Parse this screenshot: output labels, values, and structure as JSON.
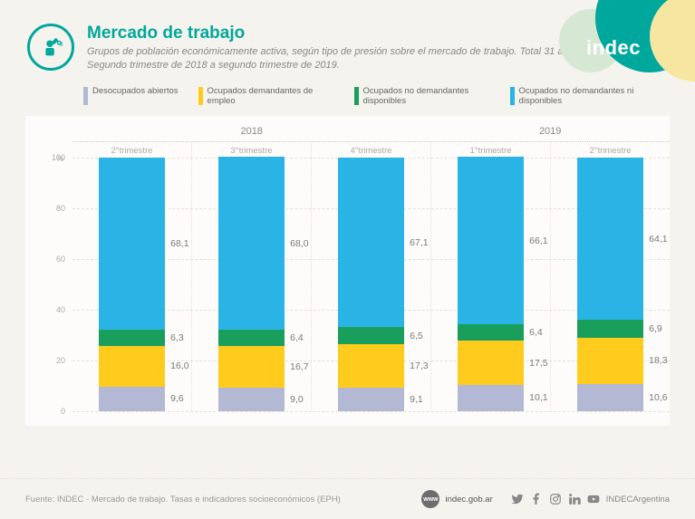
{
  "brand": "indec",
  "title": "Mercado de trabajo",
  "subtitle": "Grupos de población económicamente activa, según tipo de presión sobre el mercado de trabajo. Total 31 aglomerados urbanos. Segundo trimestre de 2018 a segundo trimestre de 2019.",
  "legend": [
    {
      "label": "Desocupados abiertos",
      "color": "#b3b8d4"
    },
    {
      "label": "Ocupados demandantes de empleo",
      "color": "#ffcc1e"
    },
    {
      "label": "Ocupados no demandantes disponibles",
      "color": "#1a9e5c"
    },
    {
      "label": "Ocupados no demandantes ni disponibles",
      "color": "#2ab4e5"
    }
  ],
  "chart": {
    "type": "stacked-bar",
    "background_color": "#fdfcfa",
    "grid_color": "#e6e1d5",
    "panel_bg": "#f5f3ed",
    "text_color": "#888888",
    "y_axis": {
      "label": "%",
      "min": 0,
      "max": 100,
      "step": 20,
      "ticks": [
        "0",
        "20",
        "40",
        "60",
        "80",
        "100"
      ]
    },
    "year_groups": [
      {
        "label": "2018",
        "span": 3
      },
      {
        "label": "2019",
        "span": 2
      }
    ],
    "quarters": [
      "2°trimestre",
      "3°trimestre",
      "4°trimestre",
      "1°trimestre",
      "2°trimestre"
    ],
    "series_colors": {
      "desocupados": "#b3b8d4",
      "demandantes": "#ffcc1e",
      "no_dem_disp": "#1a9e5c",
      "no_dem_ni_disp": "#2ab4e5"
    },
    "bars": [
      {
        "desocupados": 9.6,
        "demandantes": 16.0,
        "no_dem_disp": 6.3,
        "no_dem_ni_disp": 68.1,
        "labels": {
          "desocupados": "9,6",
          "demandantes": "16,0",
          "no_dem_disp": "6,3",
          "no_dem_ni_disp": "68,1"
        }
      },
      {
        "desocupados": 9.0,
        "demandantes": 16.7,
        "no_dem_disp": 6.4,
        "no_dem_ni_disp": 68.0,
        "labels": {
          "desocupados": "9,0",
          "demandantes": "16,7",
          "no_dem_disp": "6,4",
          "no_dem_ni_disp": "68,0"
        }
      },
      {
        "desocupados": 9.1,
        "demandantes": 17.3,
        "no_dem_disp": 6.5,
        "no_dem_ni_disp": 67.1,
        "labels": {
          "desocupados": "9,1",
          "demandantes": "17,3",
          "no_dem_disp": "6,5",
          "no_dem_ni_disp": "67,1"
        }
      },
      {
        "desocupados": 10.1,
        "demandantes": 17.5,
        "no_dem_disp": 6.4,
        "no_dem_ni_disp": 66.1,
        "labels": {
          "desocupados": "10,1",
          "demandantes": "17,5",
          "no_dem_disp": "6,4",
          "no_dem_ni_disp": "66,1"
        }
      },
      {
        "desocupados": 10.6,
        "demandantes": 18.3,
        "no_dem_disp": 6.9,
        "no_dem_ni_disp": 64.1,
        "labels": {
          "desocupados": "10,6",
          "demandantes": "18,3",
          "no_dem_disp": "6,9",
          "no_dem_ni_disp": "64,1"
        }
      }
    ],
    "bar_width_pct": 56,
    "value_label_fontsize": 10.5,
    "axis_fontsize": 9
  },
  "footer": {
    "source": "Fuente: INDEC - Mercado de trabajo. Tasas e indicadores socioeconómicos (EPH)",
    "url_label": "indec.gob.ar",
    "url_badge": "www",
    "social_handle": "INDECArgentina"
  }
}
